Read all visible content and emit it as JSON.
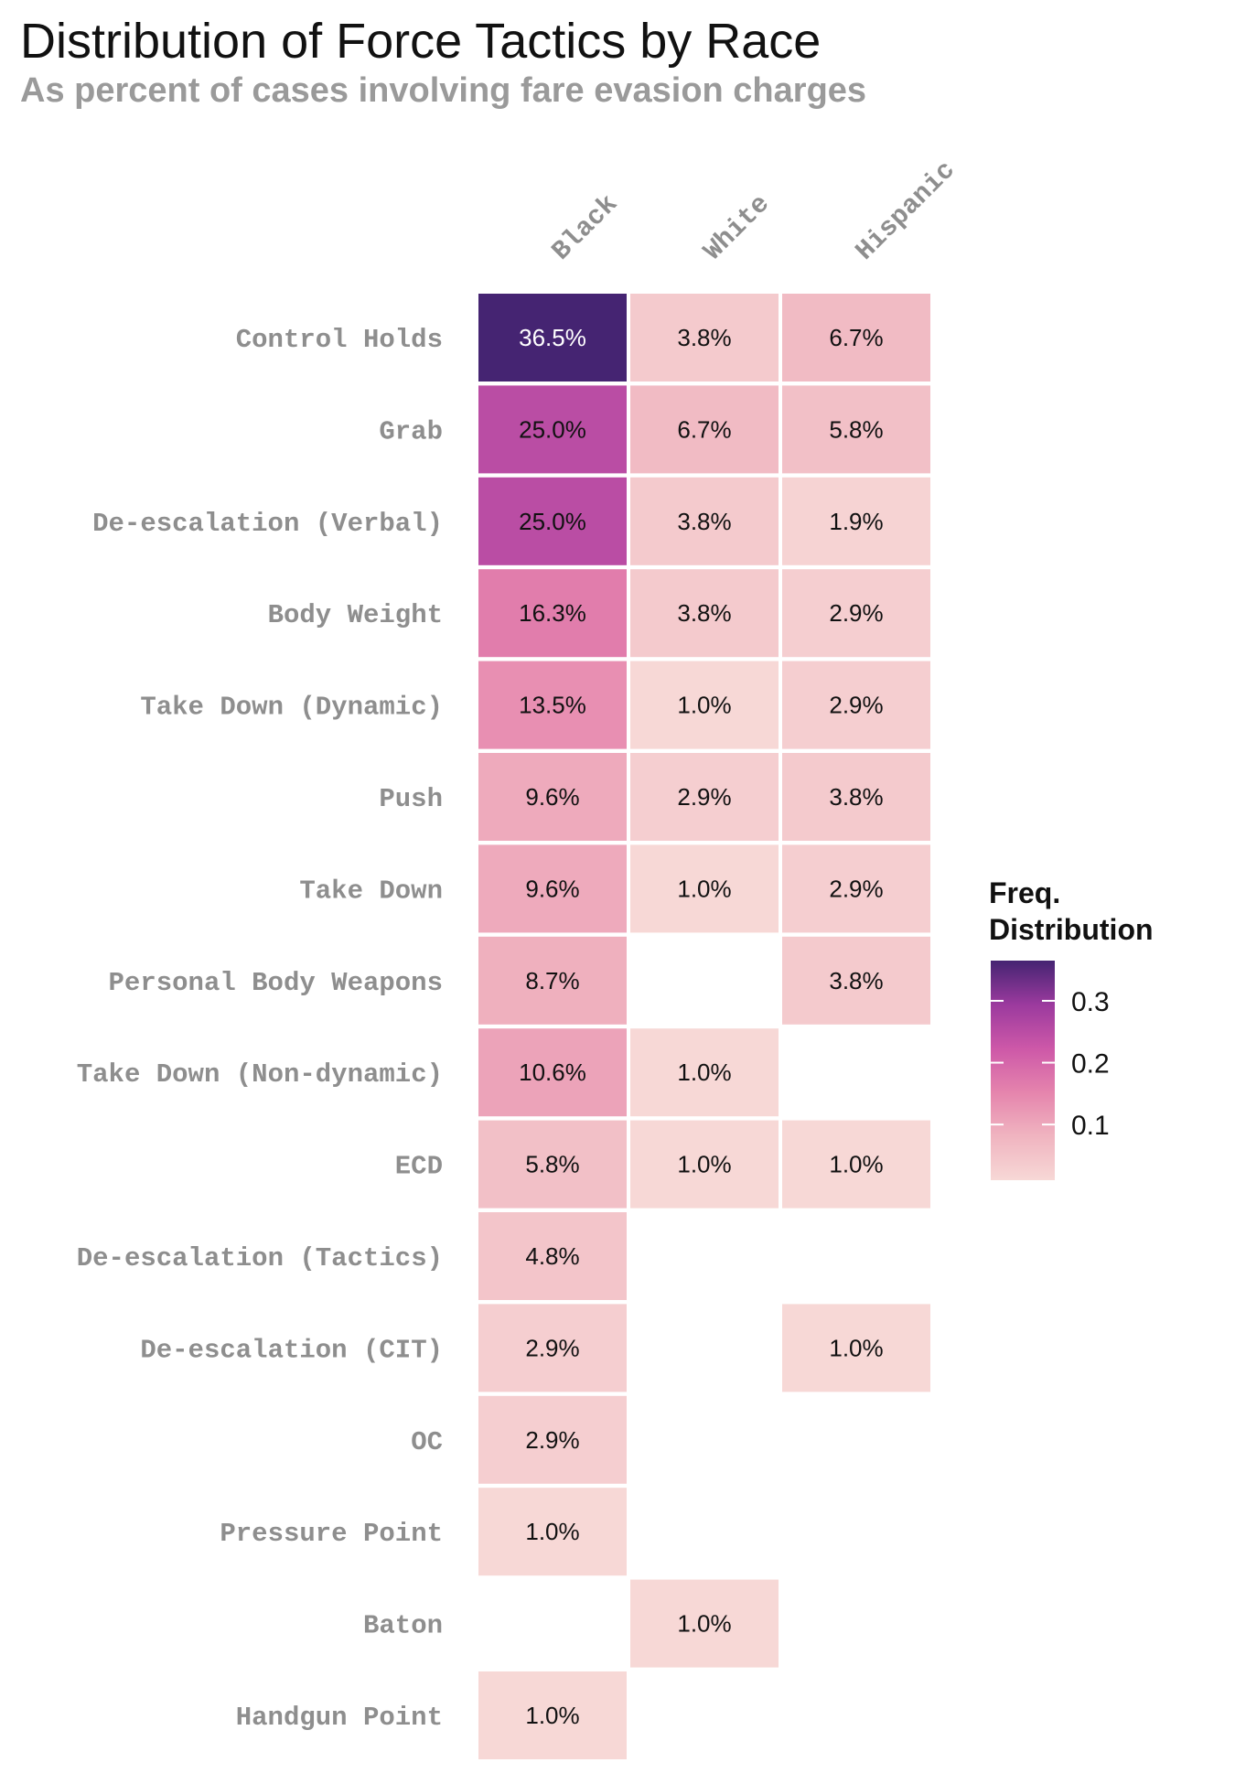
{
  "chart_data": {
    "type": "heatmap",
    "title": "Distribution of Force Tactics by Race",
    "subtitle": "As percent of cases involving fare evasion charges",
    "columns": [
      "Black",
      "White",
      "Hispanic"
    ],
    "rows": [
      "Control Holds",
      "Grab",
      "De-escalation (Verbal)",
      "Body Weight",
      "Take Down (Dynamic)",
      "Push",
      "Take Down",
      "Personal Body Weapons",
      "Take Down (Non-dynamic)",
      "ECD",
      "De-escalation (Tactics)",
      "De-escalation (CIT)",
      "OC",
      "Pressure Point",
      "Baton",
      "Handgun Point"
    ],
    "values": [
      [
        0.365,
        0.038,
        0.067
      ],
      [
        0.25,
        0.067,
        0.058
      ],
      [
        0.25,
        0.038,
        0.019
      ],
      [
        0.163,
        0.038,
        0.029
      ],
      [
        0.135,
        0.01,
        0.029
      ],
      [
        0.096,
        0.029,
        0.038
      ],
      [
        0.096,
        0.01,
        0.029
      ],
      [
        0.087,
        null,
        0.038
      ],
      [
        0.106,
        0.01,
        null
      ],
      [
        0.058,
        0.01,
        0.01
      ],
      [
        0.048,
        null,
        null
      ],
      [
        0.029,
        null,
        0.01
      ],
      [
        0.029,
        null,
        null
      ],
      [
        0.01,
        null,
        null
      ],
      [
        null,
        0.01,
        null
      ],
      [
        0.01,
        null,
        null
      ]
    ],
    "labels": [
      [
        "36.5%",
        "3.8%",
        "6.7%"
      ],
      [
        "25.0%",
        "6.7%",
        "5.8%"
      ],
      [
        "25.0%",
        "3.8%",
        "1.9%"
      ],
      [
        "16.3%",
        "3.8%",
        "2.9%"
      ],
      [
        "13.5%",
        "1.0%",
        "2.9%"
      ],
      [
        "9.6%",
        "2.9%",
        "3.8%"
      ],
      [
        "9.6%",
        "1.0%",
        "2.9%"
      ],
      [
        "8.7%",
        null,
        "3.8%"
      ],
      [
        "10.6%",
        "1.0%",
        null
      ],
      [
        "5.8%",
        "1.0%",
        "1.0%"
      ],
      [
        "4.8%",
        null,
        null
      ],
      [
        "2.9%",
        null,
        "1.0%"
      ],
      [
        "2.9%",
        null,
        null
      ],
      [
        "1.0%",
        null,
        null
      ],
      [
        null,
        "1.0%",
        null
      ],
      [
        "1.0%",
        null,
        null
      ]
    ],
    "legend": {
      "title_line1": "Freq.",
      "title_line2": "Distribution",
      "ticks": [
        0.1,
        0.2,
        0.3
      ],
      "tick_labels": [
        "0.1",
        "0.2",
        "0.3"
      ],
      "range": [
        0.01,
        0.365
      ],
      "placement": "right"
    },
    "colors": [
      "#f7d8d6",
      "#f0b4c0",
      "#e584ad",
      "#cd58a8",
      "#9b3a9e",
      "#452472"
    ],
    "grid": false
  }
}
